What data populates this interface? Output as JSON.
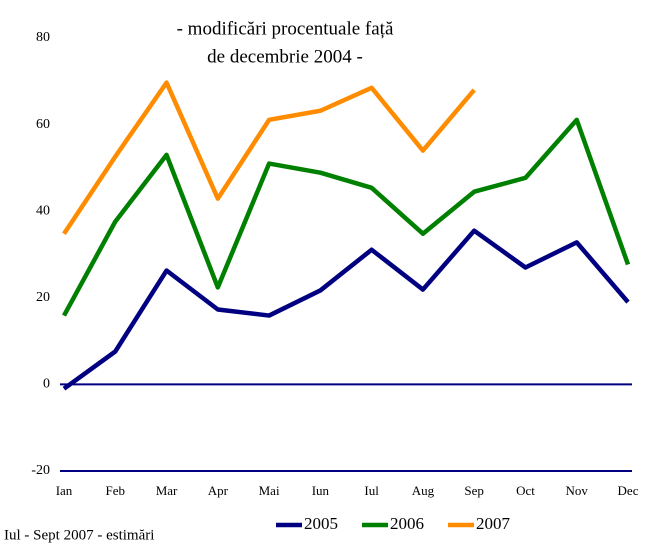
{
  "chart_data": {
    "type": "line",
    "title": [
      "- modificări procentuale față",
      "de decembrie 2004 -"
    ],
    "note": "Iul - Sept 2007 - estimări",
    "categories": [
      "Ian",
      "Feb",
      "Mar",
      "Apr",
      "Mai",
      "Iun",
      "Iul",
      "Aug",
      "Sep",
      "Oct",
      "Nov",
      "Dec"
    ],
    "series": [
      {
        "name": "2005",
        "color": "#000080",
        "values": [
          -1,
          7.6,
          26.3,
          17.3,
          15.9,
          21.7,
          31.1,
          21.9,
          35.5,
          27,
          32.8,
          19
        ]
      },
      {
        "name": "2006",
        "color": "#008000",
        "values": [
          15.9,
          37.6,
          53,
          22.4,
          51,
          48.9,
          45.4,
          34.8,
          44.5,
          47.7,
          61.1,
          27.7
        ]
      },
      {
        "name": "2007",
        "color": "#ff8c00",
        "values": [
          34.8,
          52.6,
          69.7,
          42.9,
          61.1,
          63.2,
          68.5,
          54,
          68,
          null,
          null,
          null
        ]
      }
    ],
    "ylim": [
      -20,
      80
    ],
    "yticks": [
      -20,
      0,
      20,
      40,
      60,
      80
    ],
    "grid": false,
    "legend": "bottom"
  }
}
